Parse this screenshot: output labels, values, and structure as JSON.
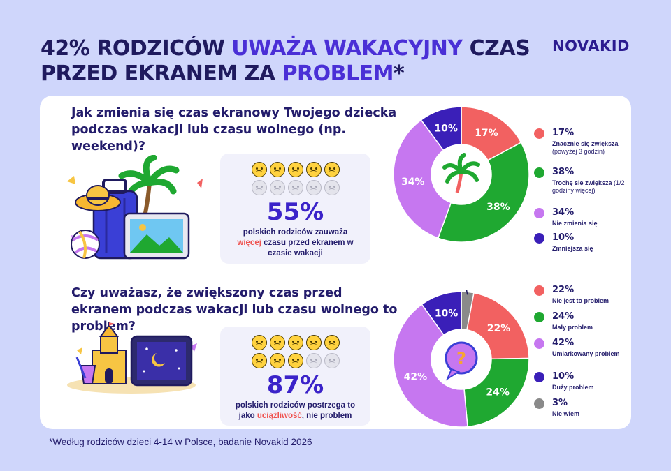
{
  "title": {
    "part1": "42% RODZICÓW ",
    "part2": "UWAŻA WAKACYJNY",
    "part3": " CZAS PRZED EKRANEM ZA ",
    "part4": "PROBLEM",
    "part5": "*"
  },
  "logo": "NOVAKID",
  "section1": {
    "question": "Jak zmienia się czas ekranowy Twojego dziecka podczas wakacji lub czasu wolnego (np. weekend)?",
    "faces_on": 5,
    "faces_total": 10,
    "big_number": "55%",
    "desc_before": "polskich rodziców zauważa",
    "desc_highlight": "więcej",
    "desc_after": " czasu przed ekranem w czasie wakacji",
    "legend": [
      {
        "pct": "17%",
        "label": "Znacznie się zwiększa",
        "sub": " (powyżej 3 godzin)",
        "color": "#f26161"
      },
      {
        "pct": "38%",
        "label": "Trochę się zwiększa",
        "sub": " (1/2 godziny więcej)",
        "color": "#1fa831"
      },
      {
        "pct": "34%",
        "label": "Nie zmienia się",
        "sub": "",
        "color": "#c677f0"
      },
      {
        "pct": "10%",
        "label": "Zmniejsza się",
        "sub": "",
        "color": "#3a1fb8"
      }
    ]
  },
  "section2": {
    "question": "Czy uważasz, że zwiększony czas przed ekranem podczas wakacji lub czasu wolnego to problem?",
    "faces_on": 8,
    "faces_total": 10,
    "big_number": "87%",
    "desc_before": "polskich rodziców postrzega to jako ",
    "desc_highlight": "uciążliwość",
    "desc_after": ", nie problem",
    "legend": [
      {
        "pct": "22%",
        "label": "Nie jest to problem",
        "sub": "",
        "color": "#f26161"
      },
      {
        "pct": "24%",
        "label": "Mały problem",
        "sub": "",
        "color": "#1fa831"
      },
      {
        "pct": "42%",
        "label": "Umiarkowany problem",
        "sub": "",
        "color": "#c677f0"
      },
      {
        "pct": "10%",
        "label": "Duży problem",
        "sub": "",
        "color": "#3a1fb8"
      },
      {
        "pct": "3%",
        "label": "Nie wiem",
        "sub": "",
        "color": "#8a8a8a"
      }
    ]
  },
  "footnote": "*Według rodziców dzieci 4-14 w Polsce, badanie Novakid 2026",
  "chart_data": [
    {
      "type": "pie",
      "categories": [
        "Znacznie się zwiększa",
        "Trochę się zwiększa",
        "Nie zmienia się",
        "Zmniejsza się"
      ],
      "values": [
        17,
        38,
        34,
        10
      ],
      "labels": [
        "17%",
        "38%",
        "34%",
        "10%"
      ],
      "colors": [
        "#f26161",
        "#1fa831",
        "#c677f0",
        "#3a1fb8"
      ]
    },
    {
      "type": "pie",
      "categories": [
        "Nie wiem",
        "Nie jest to problem",
        "Mały problem",
        "Umiarkowany problem",
        "Duży problem"
      ],
      "values": [
        3,
        22,
        24,
        42,
        10
      ],
      "labels": [
        "3%",
        "22%",
        "24%",
        "42%",
        "10%"
      ],
      "colors": [
        "#8a8a8a",
        "#f26161",
        "#1fa831",
        "#c677f0",
        "#3a1fb8"
      ]
    }
  ]
}
